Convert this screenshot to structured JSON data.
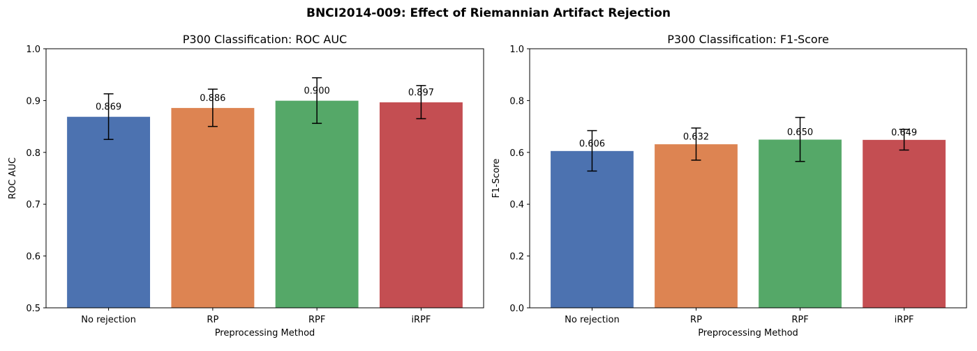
{
  "suptitle": "BNCI2014-009: Effect of Riemannian Artifact Rejection",
  "chart_data": [
    {
      "type": "bar",
      "title": "P300 Classification: ROC AUC",
      "xlabel": "Preprocessing Method",
      "ylabel": "ROC AUC",
      "categories": [
        "No rejection",
        "RP",
        "RPF",
        "iRPF"
      ],
      "values": [
        0.869,
        0.886,
        0.9,
        0.897
      ],
      "errors": [
        0.044,
        0.036,
        0.044,
        0.032
      ],
      "data_labels": [
        "0.869",
        "0.886",
        "0.900",
        "0.897"
      ],
      "ylim": [
        0.5,
        1.0
      ],
      "yticks": [
        "0.5",
        "0.6",
        "0.7",
        "0.8",
        "0.9",
        "1.0"
      ],
      "grid": false,
      "colors": [
        "#4c72b0",
        "#dd8452",
        "#55a868",
        "#c44e52"
      ]
    },
    {
      "type": "bar",
      "title": "P300 Classification: F1-Score",
      "xlabel": "Preprocessing Method",
      "ylabel": "F1-Score",
      "categories": [
        "No rejection",
        "RP",
        "RPF",
        "iRPF"
      ],
      "values": [
        0.606,
        0.632,
        0.65,
        0.649
      ],
      "errors": [
        0.078,
        0.062,
        0.085,
        0.04
      ],
      "data_labels": [
        "0.606",
        "0.632",
        "0.650",
        "0.649"
      ],
      "ylim": [
        0.0,
        1.0
      ],
      "yticks": [
        "0.0",
        "0.2",
        "0.4",
        "0.6",
        "0.8",
        "1.0"
      ],
      "grid": false,
      "colors": [
        "#4c72b0",
        "#dd8452",
        "#55a868",
        "#c44e52"
      ]
    }
  ]
}
